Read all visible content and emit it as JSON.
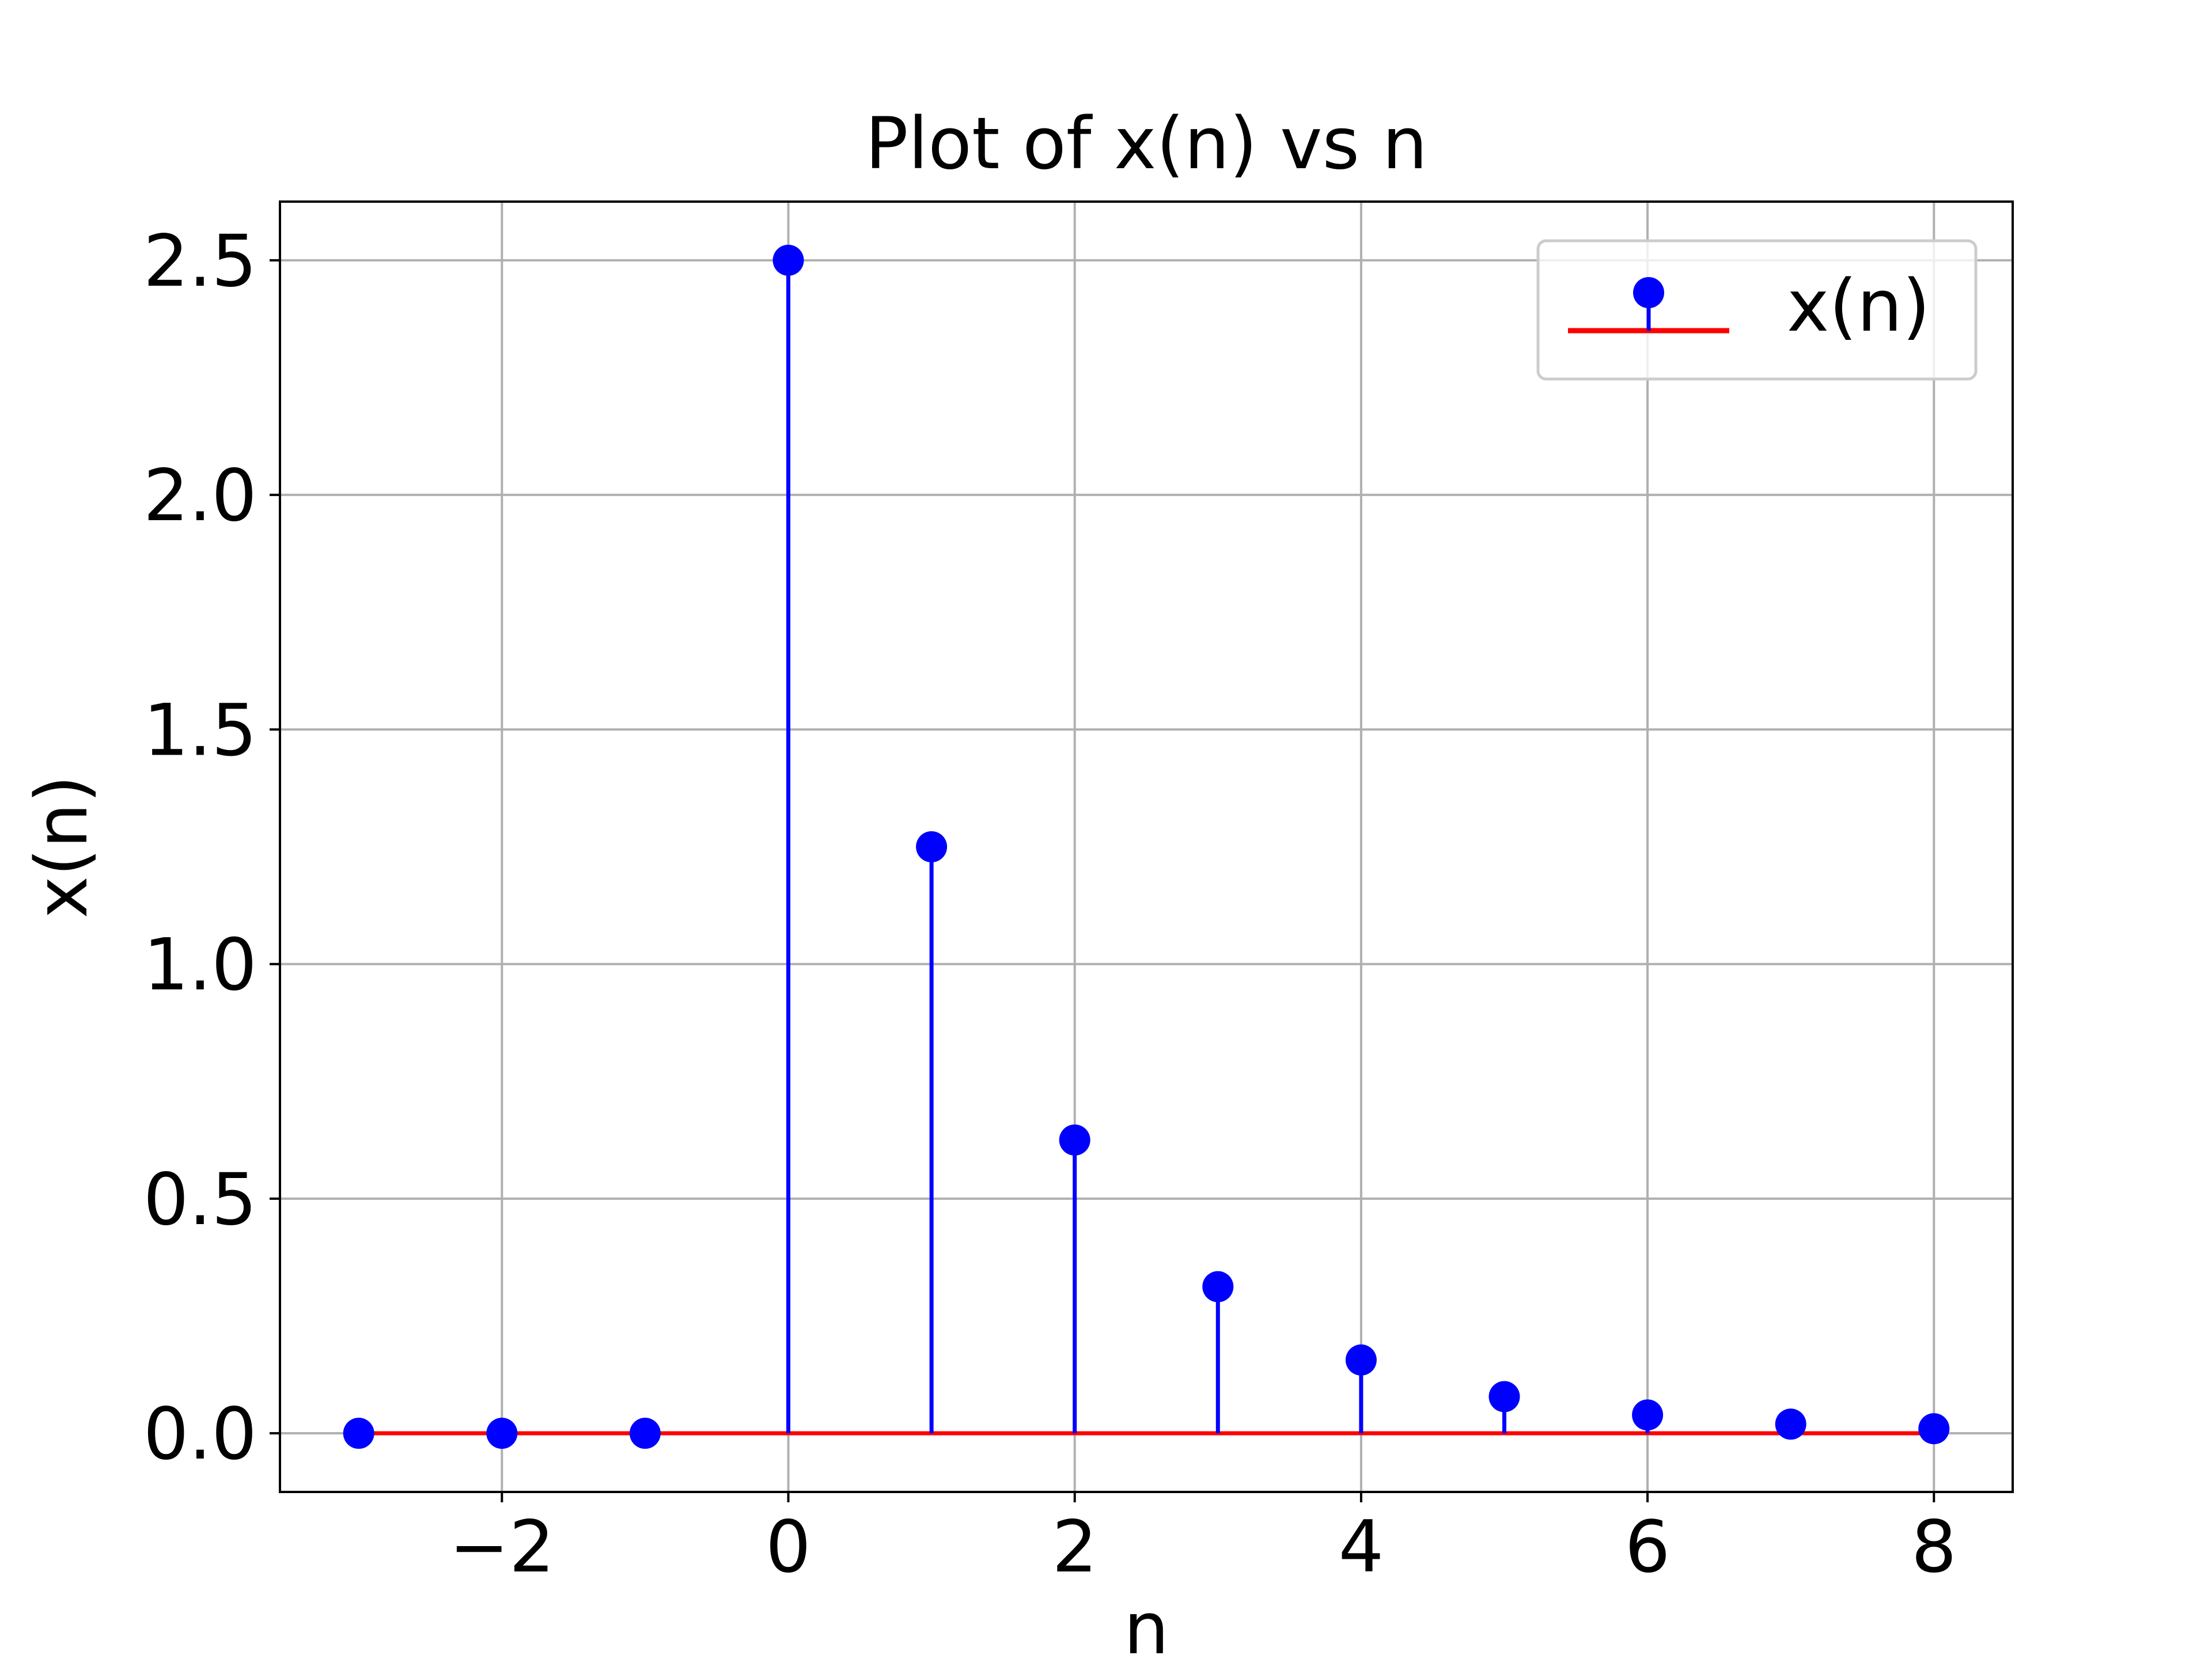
{
  "chart_data": {
    "type": "stem",
    "title": "Plot of x(n) vs n",
    "xlabel": "n",
    "ylabel": "x(n)",
    "xlim": [
      -3.55,
      8.55
    ],
    "ylim": [
      -0.125,
      2.625
    ],
    "x_ticks": [
      -2,
      0,
      2,
      4,
      6,
      8
    ],
    "x_tick_labels": [
      "−2",
      "0",
      "2",
      "4",
      "6",
      "8"
    ],
    "y_ticks": [
      0.0,
      0.5,
      1.0,
      1.5,
      2.0,
      2.5
    ],
    "y_tick_labels": [
      "0.0",
      "0.5",
      "1.0",
      "1.5",
      "2.0",
      "2.5"
    ],
    "grid": true,
    "legend_position": "upper-right",
    "baseline": 0,
    "series": [
      {
        "name": "x(n)",
        "x": [
          -3,
          -2,
          -1,
          0,
          1,
          2,
          3,
          4,
          5,
          6,
          7,
          8
        ],
        "values": [
          0,
          0,
          0,
          2.5,
          1.25,
          0.625,
          0.3125,
          0.15625,
          0.078125,
          0.0390625,
          0.01953125,
          0.009765625
        ],
        "marker_color": "#0000ff",
        "stem_color": "#0000ff",
        "baseline_color": "#ff0000"
      }
    ]
  }
}
